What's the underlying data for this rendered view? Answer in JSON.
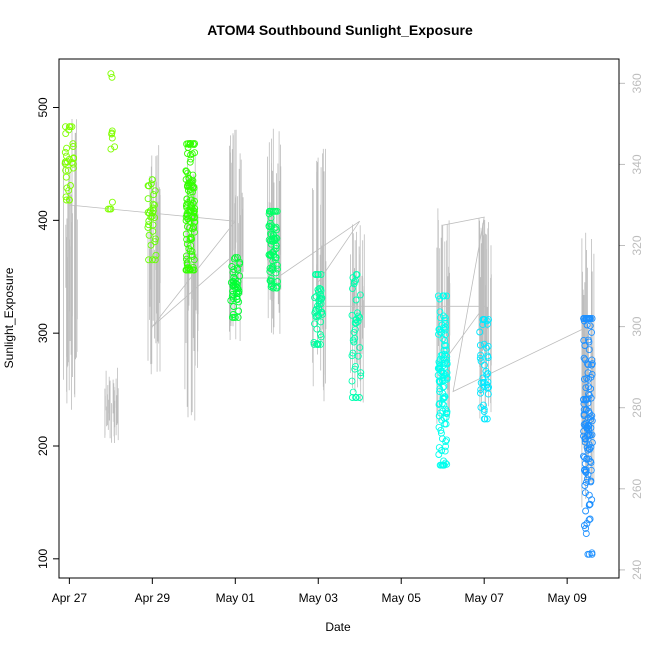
{
  "chart_data": {
    "type": "scatter",
    "title": "ATOM4 Southbound Sunlight_Exposure",
    "xlabel": "Date",
    "ylabel": "Sunlight_Exposure",
    "x_tick_labels": [
      "Apr 27",
      "Apr 29",
      "May 01",
      "May 03",
      "May 05",
      "May 07",
      "May 09"
    ],
    "x_tick_dates": [
      "2024-04-27",
      "2024-04-29",
      "2024-05-01",
      "2024-05-03",
      "2024-05-05",
      "2024-05-07",
      "2024-05-09"
    ],
    "xlim": [
      "2024-04-26 18:00",
      "2024-05-10 06:00"
    ],
    "ylim": [
      83,
      543
    ],
    "y_ticks": [
      100,
      200,
      300,
      400,
      500
    ],
    "y2lim": [
      238,
      366
    ],
    "y2_ticks": [
      240,
      260,
      280,
      300,
      320,
      340,
      360
    ],
    "y2_color": "#bdbdbd",
    "grid": false,
    "series": [
      {
        "marker": "open-circle",
        "color_scale": "green-to-blue over time",
        "clusters": [
          {
            "date": "2024-04-27 00:00",
            "y_range": [
              418,
              483
            ],
            "n": 28,
            "color": "#7fff00"
          },
          {
            "date": "2024-04-28 00:00",
            "y_range": [
              410,
              530
            ],
            "n": 10,
            "color": "#80ff00"
          },
          {
            "date": "2024-04-29 00:00",
            "y_range": [
              365,
              436
            ],
            "n": 30,
            "color": "#66ff00"
          },
          {
            "date": "2024-04-29 22:00",
            "y_range": [
              356,
              468
            ],
            "n": 110,
            "color": "#33ff00"
          },
          {
            "date": "2024-05-01 00:00",
            "y_range": [
              314,
              367
            ],
            "n": 45,
            "color": "#00ff33"
          },
          {
            "date": "2024-05-01 22:00",
            "y_range": [
              340,
              408
            ],
            "n": 70,
            "color": "#00ff66"
          },
          {
            "date": "2024-05-03 00:00",
            "y_range": [
              290,
              352
            ],
            "n": 45,
            "color": "#00ffa0"
          },
          {
            "date": "2024-05-03 22:00",
            "y_range": [
              243,
              352
            ],
            "n": 35,
            "color": "#00ffb0"
          },
          {
            "date": "2024-05-06 00:00",
            "y_range": [
              183,
              333
            ],
            "n": 110,
            "color": "#00ffee"
          },
          {
            "date": "2024-05-07 00:00",
            "y_range": [
              224,
              312
            ],
            "n": 40,
            "color": "#00e8ff"
          },
          {
            "date": "2024-05-09 12:00",
            "y_range": [
              104,
              313
            ],
            "n": 130,
            "color": "#1e90ff"
          }
        ]
      },
      {
        "axis": "right",
        "type": "line",
        "color": "#bdbdbd",
        "path": [
          [
            "2024-04-27 00:00",
            330
          ],
          [
            "2024-05-01 00:00",
            326
          ],
          [
            "2024-04-29 00:00",
            300
          ],
          [
            "2024-05-01 00:00",
            318
          ],
          [
            "2024-05-01 00:00",
            312
          ],
          [
            "2024-05-02 00:00",
            312
          ],
          [
            "2024-05-04 00:00",
            326
          ],
          [
            "2024-05-03 00:00",
            311
          ],
          [
            "2024-05-03 00:00",
            305
          ],
          [
            "2024-05-06 00:00",
            305
          ],
          [
            "2024-05-06 12:00",
            305
          ],
          [
            "2024-05-07 00:00",
            305
          ],
          [
            "2024-05-06 00:00",
            291
          ],
          [
            "2024-05-06 00:00",
            325
          ],
          [
            "2024-05-07 00:00",
            327
          ],
          [
            "2024-05-06 06:00",
            284
          ],
          [
            "2024-05-09 12:00",
            300
          ]
        ],
        "spikes": [
          {
            "date": "2024-04-27 00:00",
            "range": [
              276,
              352
            ]
          },
          {
            "date": "2024-04-28 00:00",
            "range": [
              270,
              290
            ]
          },
          {
            "date": "2024-04-29 00:00",
            "range": [
              288,
              346
            ]
          },
          {
            "date": "2024-04-29 22:00",
            "range": [
              276,
              344
            ]
          },
          {
            "date": "2024-05-01 00:00",
            "range": [
              296,
              350
            ]
          },
          {
            "date": "2024-05-01 22:00",
            "range": [
              296,
              350
            ]
          },
          {
            "date": "2024-05-03 00:00",
            "range": [
              281,
              344
            ]
          },
          {
            "date": "2024-05-03 22:00",
            "range": [
              281,
              330
            ]
          },
          {
            "date": "2024-05-06 00:00",
            "range": [
              276,
              333
            ]
          },
          {
            "date": "2024-05-07 00:00",
            "range": [
              277,
              327
            ]
          },
          {
            "date": "2024-05-09 12:00",
            "range": [
              255,
              324
            ]
          }
        ]
      }
    ]
  }
}
